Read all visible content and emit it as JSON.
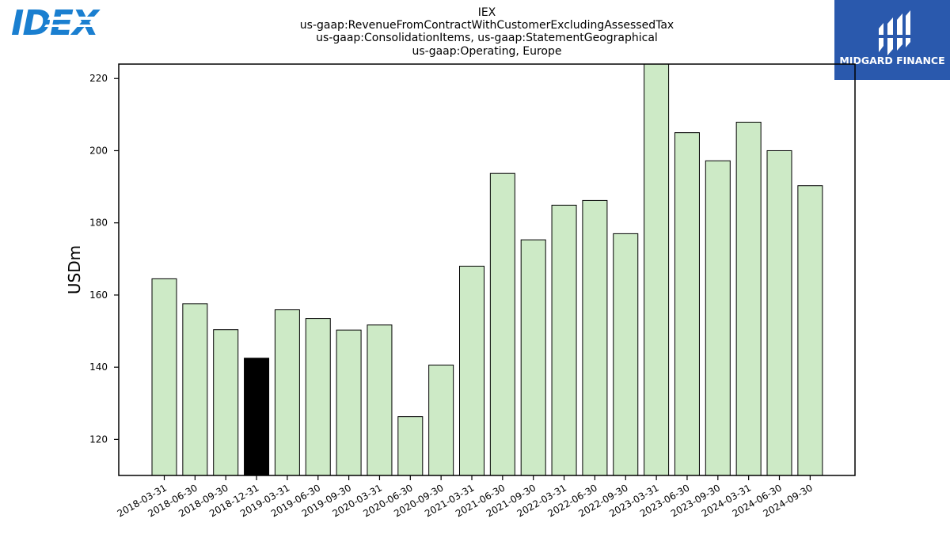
{
  "logos": {
    "left": {
      "text": "IDEX",
      "color": "#1a7fd0"
    },
    "right": {
      "text": "MIDGARD FINANCE",
      "bg_color": "#2a59ad"
    }
  },
  "chart_data": {
    "type": "bar",
    "title_lines": [
      "IEX",
      "us-gaap:RevenueFromContractWithCustomerExcludingAssessedTax",
      "us-gaap:ConsolidationItems, us-gaap:StatementGeographical",
      "us-gaap:Operating, Europe"
    ],
    "xlabel": "",
    "ylabel": "USDm",
    "ylim": [
      110,
      224
    ],
    "yticks": [
      120,
      140,
      160,
      180,
      200,
      220
    ],
    "categories": [
      "2018-03-31",
      "2018-06-30",
      "2018-09-30",
      "2018-12-31",
      "2019-03-31",
      "2019-06-30",
      "2019-09-30",
      "2020-03-31",
      "2020-06-30",
      "2020-09-30",
      "2021-03-31",
      "2021-06-30",
      "2021-09-30",
      "2022-03-31",
      "2022-06-30",
      "2022-09-30",
      "2023-03-31",
      "2023-06-30",
      "2023-09-30",
      "2024-03-31",
      "2024-06-30",
      "2024-09-30"
    ],
    "values": [
      164.5,
      157.6,
      150.4,
      142.5,
      155.9,
      153.5,
      150.3,
      151.7,
      126.3,
      140.6,
      168.0,
      193.7,
      175.3,
      184.9,
      186.2,
      177.0,
      224.0,
      205.0,
      197.2,
      207.9,
      200.0,
      190.3
    ],
    "highlight_index": 3,
    "colors": {
      "bar": "#cdeac6",
      "highlight": "#000000",
      "edge": "#000000"
    },
    "grid": false,
    "legend": "none"
  }
}
